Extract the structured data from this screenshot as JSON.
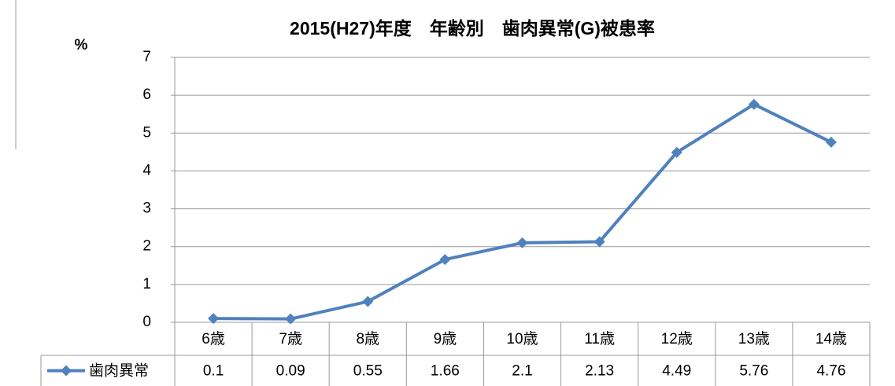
{
  "chart_data": {
    "type": "line",
    "title": "2015(H27)年度　年齢別　歯肉異常(G)被患率",
    "y_label": "%",
    "categories": [
      "6歳",
      "7歳",
      "8歳",
      "9歳",
      "10歳",
      "11歳",
      "12歳",
      "13歳",
      "14歳"
    ],
    "series": [
      {
        "name": "歯肉異常",
        "color": "#4f81bd",
        "values": [
          0.1,
          0.09,
          0.55,
          1.66,
          2.1,
          2.13,
          4.49,
          5.76,
          4.76
        ]
      }
    ],
    "ylim": [
      0,
      7
    ],
    "yticks": [
      0,
      1,
      2,
      3,
      4,
      5,
      6,
      7
    ],
    "grid": true,
    "data_table": true
  }
}
